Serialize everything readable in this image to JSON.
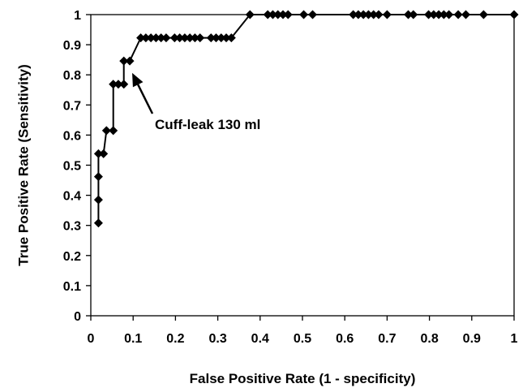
{
  "chart_data": {
    "type": "line",
    "title": "",
    "xlabel": "False Positive Rate (1 - specificity)",
    "ylabel": "True Positive Rate (Sensitivity)",
    "xlim": [
      0,
      1
    ],
    "ylim": [
      0,
      1
    ],
    "x_ticks": [
      "0",
      "0.1",
      "0.2",
      "0.3",
      "0.4",
      "0.5",
      "0.6",
      "0.7",
      "0.8",
      "0.9",
      "1"
    ],
    "y_ticks": [
      "0",
      "0.1",
      "0.2",
      "0.3",
      "0.4",
      "0.5",
      "0.6",
      "0.7",
      "0.8",
      "0.9",
      "1"
    ],
    "grid": false,
    "legend": "none",
    "series": [
      {
        "marker": "diamond",
        "color": "#000000",
        "points": [
          [
            0.018,
            0.308
          ],
          [
            0.018,
            0.385
          ],
          [
            0.018,
            0.462
          ],
          [
            0.018,
            0.538
          ],
          [
            0.03,
            0.538
          ],
          [
            0.037,
            0.615
          ],
          [
            0.053,
            0.615
          ],
          [
            0.053,
            0.769
          ],
          [
            0.065,
            0.769
          ],
          [
            0.078,
            0.769
          ],
          [
            0.078,
            0.846
          ],
          [
            0.092,
            0.846
          ],
          [
            0.118,
            0.923
          ],
          [
            0.13,
            0.923
          ],
          [
            0.142,
            0.923
          ],
          [
            0.154,
            0.923
          ],
          [
            0.166,
            0.923
          ],
          [
            0.178,
            0.923
          ],
          [
            0.198,
            0.923
          ],
          [
            0.21,
            0.923
          ],
          [
            0.222,
            0.923
          ],
          [
            0.234,
            0.923
          ],
          [
            0.246,
            0.923
          ],
          [
            0.258,
            0.923
          ],
          [
            0.284,
            0.923
          ],
          [
            0.296,
            0.923
          ],
          [
            0.308,
            0.923
          ],
          [
            0.32,
            0.923
          ],
          [
            0.332,
            0.923
          ],
          [
            0.376,
            1.0
          ],
          [
            0.418,
            1.0
          ],
          [
            0.43,
            1.0
          ],
          [
            0.442,
            1.0
          ],
          [
            0.454,
            1.0
          ],
          [
            0.466,
            1.0
          ],
          [
            0.503,
            1.0
          ],
          [
            0.524,
            1.0
          ],
          [
            0.62,
            1.0
          ],
          [
            0.632,
            1.0
          ],
          [
            0.644,
            1.0
          ],
          [
            0.656,
            1.0
          ],
          [
            0.668,
            1.0
          ],
          [
            0.68,
            1.0
          ],
          [
            0.7,
            1.0
          ],
          [
            0.75,
            1.0
          ],
          [
            0.762,
            1.0
          ],
          [
            0.798,
            1.0
          ],
          [
            0.81,
            1.0
          ],
          [
            0.822,
            1.0
          ],
          [
            0.834,
            1.0
          ],
          [
            0.846,
            1.0
          ],
          [
            0.868,
            1.0
          ],
          [
            0.886,
            1.0
          ],
          [
            0.928,
            1.0
          ],
          [
            1.0,
            1.0
          ]
        ]
      }
    ],
    "annotations": [
      {
        "text": "Cuff-leak 130 ml",
        "point": [
          0.092,
          0.79
        ]
      }
    ]
  }
}
